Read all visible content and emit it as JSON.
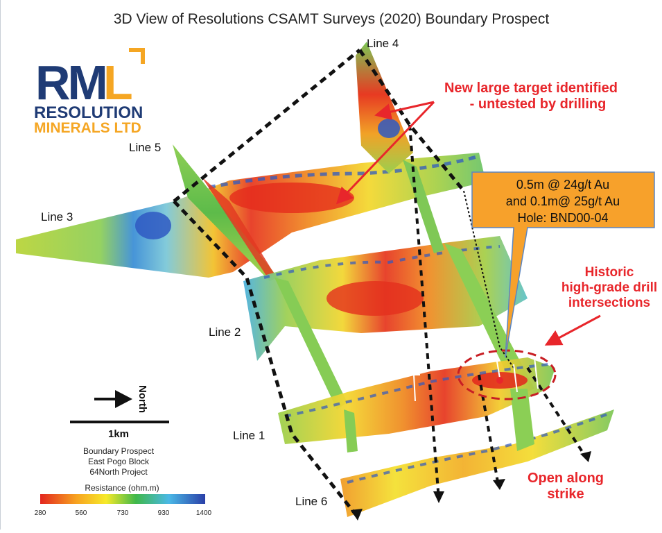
{
  "title": "3D View of Resolutions CSAMT Surveys (2020) Boundary Prospect",
  "logo": {
    "letters": "RML",
    "line1": "RESOLUTION",
    "line2": "MINERALS LTD"
  },
  "lines": {
    "line1": "Line 1",
    "line2": "Line 2",
    "line3": "Line 3",
    "line4": "Line 4",
    "line5": "Line 5",
    "line6": "Line 6"
  },
  "callouts": {
    "new_target": [
      "New large target identified",
      "- untested by drilling"
    ],
    "historic": [
      "Historic",
      "high-grade drill",
      "intersections"
    ],
    "open_strike": [
      "Open along",
      "strike"
    ],
    "drill_box": [
      "0.5m @ 24g/t Au",
      "and 0.1m@ 25g/t Au",
      "Hole: BND00-04"
    ]
  },
  "north_label": "North",
  "scale_label": "1km",
  "project_info": [
    "Boundary Prospect",
    "East Pogo Block",
    "64North Project"
  ],
  "legend": {
    "title": "Resistance (ohm.m)",
    "ticks": [
      "280",
      "560",
      "730",
      "930",
      "1400"
    ]
  },
  "colors": {
    "callout_red": "#e8262b",
    "drill_box_fill": "#f7a12b",
    "logo_blue": "#1f3b75",
    "logo_orange": "#f5a623"
  }
}
